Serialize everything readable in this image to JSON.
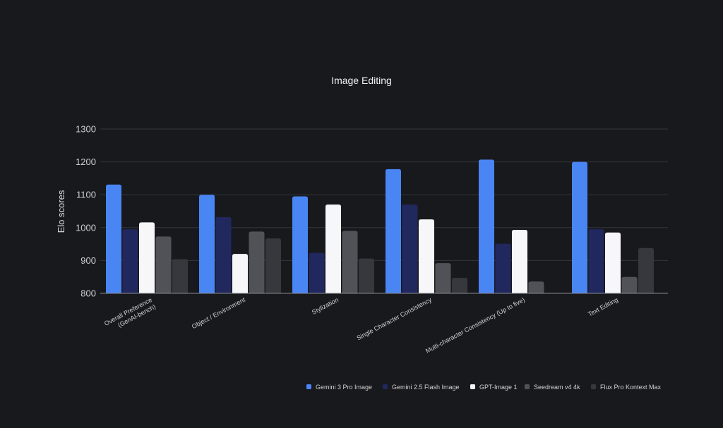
{
  "chart_data": {
    "type": "bar",
    "title": "Image Editing",
    "ylabel": "Elo scores",
    "xlabel": "",
    "ylim": [
      800,
      1300
    ],
    "yticks": [
      800,
      900,
      1000,
      1100,
      1200,
      1300
    ],
    "grid": true,
    "legend_position": "bottom-right",
    "categories": [
      [
        "Overall Preference",
        "(GenAI-bench)"
      ],
      [
        "Object / Environment"
      ],
      [
        "Stylization"
      ],
      [
        "Single Character Consistency"
      ],
      [
        "Multi-character Consistency (Up to five)"
      ],
      [
        "Text Editing"
      ]
    ],
    "series": [
      {
        "name": "Gemini 3 Pro Image",
        "color": "#4a85f4",
        "values": [
          1131,
          1100,
          1095,
          1178,
          1207,
          1200
        ]
      },
      {
        "name": "Gemini 2.5 Flash Image",
        "color": "#20285e",
        "values": [
          995,
          1032,
          923,
          1070,
          951,
          995
        ]
      },
      {
        "name": "GPT-Image 1",
        "color": "#f7f7f9",
        "values": [
          1016,
          920,
          1070,
          1025,
          993,
          985
        ]
      },
      {
        "name": "Seedream v4 4k",
        "color": "#505257",
        "values": [
          973,
          988,
          990,
          892,
          836,
          850
        ]
      },
      {
        "name": "Flux Pro Kontext Max",
        "color": "#36383d",
        "values": [
          904,
          967,
          906,
          847,
          null,
          938
        ]
      }
    ]
  }
}
